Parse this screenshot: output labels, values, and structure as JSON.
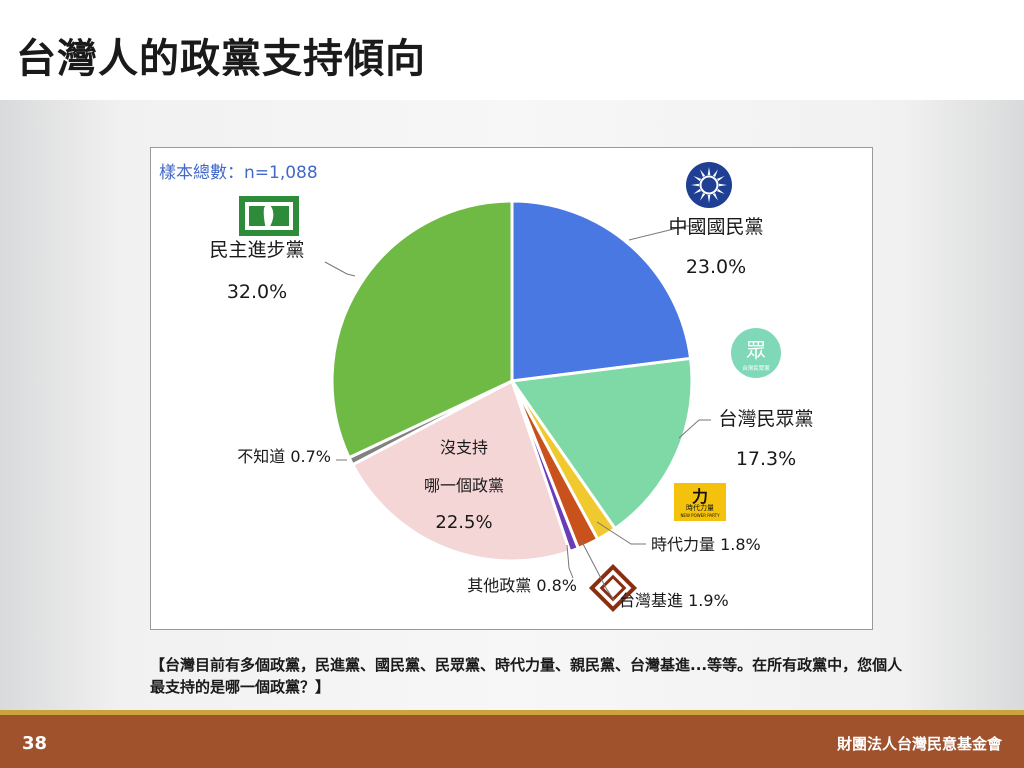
{
  "slide": {
    "title": "台灣人的政黨支持傾向",
    "question": "【台灣目前有多個政黨，民進黨、國民黨、民眾黨、時代力量、親民黨、台灣基進...等等。在所有政黨中，您個人最支持的是哪一個政黨？】",
    "page_number": "38",
    "organization": "財團法人台灣民意基金會",
    "colors": {
      "footer": "#a0522d",
      "footer_line": "#c9a33c",
      "sample_text": "#4169c9"
    }
  },
  "logos": {
    "kmt": "kmt-logo-icon",
    "dpp": "dpp-logo-icon",
    "tpp": {
      "icon": "tpp-logo-icon",
      "text": "台灣民眾黨"
    },
    "npp": {
      "icon": "npp-logo-icon",
      "text": "時代力量",
      "subtext": "NEW POWER PARTY"
    },
    "tsp": "tsp-logo-icon"
  },
  "chart_data": {
    "type": "pie",
    "sample_label": "樣本總數：n=1,088",
    "slices": [
      {
        "label": "中國國民黨",
        "value": 23.0,
        "value_label": "23.0%",
        "color": "#4a78e2"
      },
      {
        "label": "台灣民眾黨",
        "value": 17.3,
        "value_label": "17.3%",
        "color": "#7fd9a6"
      },
      {
        "label": "時代力量",
        "value": 1.8,
        "value_label": "1.8%",
        "color": "#f0c92e"
      },
      {
        "label": "台灣基進",
        "value": 1.9,
        "value_label": "1.9%",
        "color": "#c8511c"
      },
      {
        "label": "其他政黨",
        "value": 0.8,
        "value_label": "0.8%",
        "color": "#6a3db8"
      },
      {
        "label": "沒支持哪一個政黨",
        "label_lines": [
          "沒支持",
          "哪一個政黨"
        ],
        "value": 22.5,
        "value_label": "22.5%",
        "color": "#f4d6d6"
      },
      {
        "label": "不知道",
        "value": 0.7,
        "value_label": "0.7%",
        "color": "#808080"
      },
      {
        "label": "民主進步黨",
        "value": 32.0,
        "value_label": "32.0%",
        "color": "#6fba45"
      }
    ]
  }
}
